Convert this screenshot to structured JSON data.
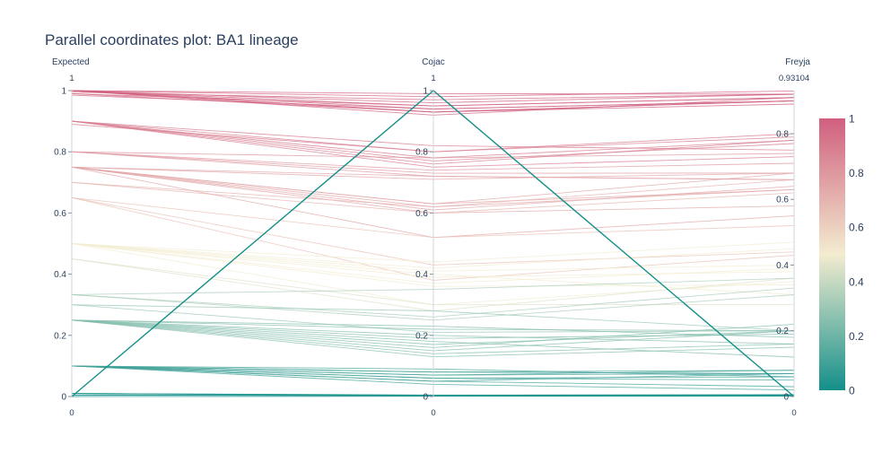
{
  "chart_data": {
    "type": "parallel_coordinates",
    "title": "Parallel coordinates plot: BA1 lineage",
    "dimensions": [
      {
        "name": "Expected",
        "range_max_label": "1",
        "range_min_label": "0",
        "ticks": [
          "0",
          "0.2",
          "0.4",
          "0.6",
          "0.8",
          "1"
        ],
        "tick_values": [
          0,
          0.2,
          0.4,
          0.6,
          0.8,
          1
        ],
        "range": [
          0,
          1
        ]
      },
      {
        "name": "Cojac",
        "range_max_label": "1",
        "range_min_label": "0",
        "ticks": [
          "0",
          "0.2",
          "0.4",
          "0.6",
          "0.8",
          "1"
        ],
        "tick_values": [
          0,
          0.2,
          0.4,
          0.6,
          0.8,
          1
        ],
        "range": [
          0,
          1
        ]
      },
      {
        "name": "Freyja",
        "range_max_label": "0.93104",
        "range_min_label": "0",
        "ticks": [
          "0",
          "0.2",
          "0.4",
          "0.6",
          "0.8"
        ],
        "tick_values": [
          0,
          0.2,
          0.4,
          0.6,
          0.8
        ],
        "range": [
          0,
          0.93104
        ]
      }
    ],
    "colorscale": {
      "low": "#148f8a",
      "mid": "#f3ecd0",
      "high": "#d05f7e"
    },
    "colorbar": {
      "ticks": [
        "0",
        "0.2",
        "0.4",
        "0.6",
        "0.8",
        "1"
      ],
      "tick_values": [
        0,
        0.2,
        0.4,
        0.6,
        0.8,
        1
      ],
      "range": [
        0,
        1
      ]
    },
    "lines": [
      [
        1,
        0.98,
        0.93
      ],
      [
        1,
        0.96,
        0.92
      ],
      [
        1,
        0.95,
        0.91
      ],
      [
        1,
        0.94,
        0.9
      ],
      [
        1,
        0.93,
        0.89
      ],
      [
        1,
        0.93,
        0.9
      ],
      [
        1,
        0.92,
        0.91
      ],
      [
        1,
        0.99,
        0.92
      ],
      [
        0.995,
        0.97,
        0.92
      ],
      [
        0.99,
        0.93,
        0.9
      ],
      [
        0.99,
        0.95,
        0.91
      ],
      [
        0.985,
        0.94,
        0.9
      ],
      [
        0.9,
        0.78,
        0.78
      ],
      [
        0.9,
        0.77,
        0.77
      ],
      [
        0.9,
        0.76,
        0.78
      ],
      [
        0.9,
        0.8,
        0.8
      ],
      [
        0.89,
        0.8,
        0.79
      ],
      [
        0.9,
        0.75,
        0.73
      ],
      [
        0.9,
        0.82,
        0.75
      ],
      [
        0.8,
        0.73,
        0.68
      ],
      [
        0.8,
        0.72,
        0.66
      ],
      [
        0.8,
        0.78,
        0.74
      ],
      [
        0.8,
        0.74,
        0.71
      ],
      [
        0.75,
        0.63,
        0.63
      ],
      [
        0.75,
        0.62,
        0.63
      ],
      [
        0.75,
        0.61,
        0.64
      ],
      [
        0.75,
        0.6,
        0.58
      ],
      [
        0.75,
        0.52,
        0.55
      ],
      [
        0.75,
        0.63,
        0.68
      ],
      [
        0.75,
        0.72,
        0.66
      ],
      [
        0.75,
        0.71,
        0.68
      ],
      [
        0.7,
        0.62,
        0.66
      ],
      [
        0.7,
        0.6,
        0.62
      ],
      [
        0.65,
        0.43,
        0.44
      ],
      [
        0.65,
        0.38,
        0.43
      ],
      [
        0.65,
        0.52,
        0.52
      ],
      [
        0.5,
        0.36,
        0.34
      ],
      [
        0.5,
        0.39,
        0.38
      ],
      [
        0.5,
        0.4,
        0.31
      ],
      [
        0.5,
        0.41,
        0.4
      ],
      [
        0.5,
        0.37,
        0.39
      ],
      [
        0.5,
        0.44,
        0.47
      ],
      [
        0.5,
        0.3,
        0.35
      ],
      [
        0.5,
        0.42,
        0.45
      ],
      [
        0.45,
        0.28,
        0.36
      ],
      [
        0.45,
        0.3,
        0.28
      ],
      [
        0.333,
        0.25,
        0.31
      ],
      [
        0.333,
        0.26,
        0.33
      ],
      [
        0.333,
        0.35,
        0.36
      ],
      [
        0.3,
        0.21,
        0.2
      ],
      [
        0.3,
        0.28,
        0.2
      ],
      [
        0.25,
        0.19,
        0.19
      ],
      [
        0.25,
        0.17,
        0.2
      ],
      [
        0.25,
        0.16,
        0.22
      ],
      [
        0.25,
        0.15,
        0.2
      ],
      [
        0.25,
        0.14,
        0.16
      ],
      [
        0.25,
        0.13,
        0.15
      ],
      [
        0.25,
        0.2,
        0.16
      ],
      [
        0.25,
        0.18,
        0.12
      ],
      [
        0.25,
        0.22,
        0.2
      ],
      [
        0.25,
        0.23,
        0.18
      ],
      [
        0.1,
        0.08,
        0.08
      ],
      [
        0.1,
        0.07,
        0.08
      ],
      [
        0.1,
        0.06,
        0.06
      ],
      [
        0.1,
        0.05,
        0.07
      ],
      [
        0.1,
        0.07,
        0.07
      ],
      [
        0.1,
        0.08,
        0.07
      ],
      [
        0.1,
        0.06,
        0.05
      ],
      [
        0.1,
        0.09,
        0.06
      ],
      [
        0.1,
        0.05,
        0.03
      ],
      [
        0.1,
        0.04,
        0.02
      ],
      [
        0.01,
        0.005,
        0.005
      ],
      [
        0.01,
        0.004,
        0.006
      ],
      [
        0.01,
        0.003,
        0.004
      ],
      [
        0.005,
        0.002,
        0.003
      ],
      [
        0.005,
        0.003,
        0.002
      ],
      [
        0,
        0.001,
        0.001
      ],
      [
        0,
        1,
        0
      ]
    ]
  }
}
